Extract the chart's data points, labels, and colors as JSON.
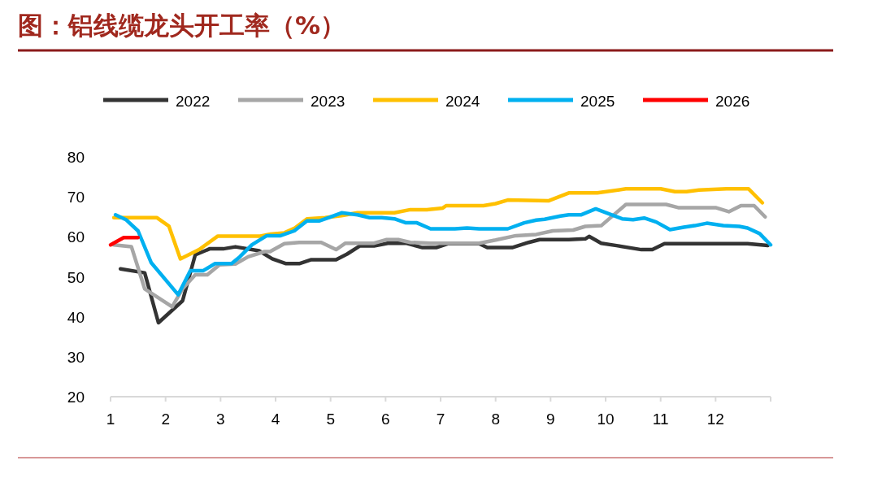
{
  "chart_data": {
    "type": "line",
    "title": "图：铝线缆龙头开工率（%）",
    "xlim": [
      1,
      13
    ],
    "xticks": [
      1,
      2,
      3,
      4,
      5,
      6,
      7,
      8,
      9,
      10,
      11,
      12
    ],
    "ylim": [
      20,
      80
    ],
    "yticks": [
      20,
      30,
      40,
      50,
      60,
      70,
      80
    ],
    "grid": false,
    "legend": "top",
    "marker": "none",
    "line_style": "solid",
    "series": [
      {
        "name": "2022",
        "color": "#333333",
        "x": [
          1.18,
          1.62,
          1.87,
          2.31,
          2.54,
          2.8,
          3.05,
          3.27,
          3.7,
          3.94,
          4.19,
          4.43,
          4.65,
          5.1,
          5.3,
          5.53,
          5.79,
          6.04,
          6.37,
          6.67,
          6.92,
          7.14,
          7.7,
          7.85,
          8.3,
          8.6,
          8.8,
          9.33,
          9.63,
          9.7,
          9.92,
          10.2,
          10.65,
          10.85,
          11.07,
          12.58,
          12.95
        ],
        "values": [
          52,
          51,
          38.5,
          44,
          55.5,
          57,
          57,
          57.5,
          56.5,
          54.5,
          53.3,
          53.3,
          54.3,
          54.3,
          55.7,
          57.7,
          57.7,
          58.4,
          58.4,
          57.3,
          57.3,
          58.3,
          58.3,
          57.3,
          57.3,
          58.6,
          59.3,
          59.3,
          59.5,
          60.1,
          58.4,
          57.8,
          56.8,
          56.8,
          58.3,
          58.3,
          57.8
        ]
      },
      {
        "name": "2023",
        "color": "#a6a6a6",
        "x": [
          1.06,
          1.38,
          1.62,
          2.12,
          2.31,
          2.54,
          2.76,
          2.98,
          3.27,
          3.5,
          3.8,
          3.9,
          4.16,
          4.43,
          4.83,
          5.1,
          5.27,
          5.79,
          6.01,
          6.23,
          6.45,
          6.82,
          7.26,
          7.7,
          8.0,
          8.37,
          8.74,
          9.04,
          9.41,
          9.63,
          9.92,
          10.37,
          11.1,
          11.32,
          12.0,
          12.24,
          12.46,
          12.7,
          12.9
        ],
        "values": [
          58,
          57.5,
          47,
          42.5,
          47,
          50.5,
          50.5,
          53,
          53.2,
          55,
          56.3,
          56.3,
          58.3,
          58.6,
          58.6,
          56.8,
          58.4,
          58.4,
          59.3,
          59.3,
          58.6,
          58.4,
          58.4,
          58.4,
          59.2,
          60.3,
          60.6,
          61.5,
          61.7,
          62.6,
          62.8,
          68.1,
          68.1,
          67.3,
          67.3,
          66.3,
          67.8,
          67.8,
          65
        ]
      },
      {
        "name": "2024",
        "color": "#ffc000",
        "x": [
          1.06,
          1.84,
          2.06,
          2.27,
          2.61,
          2.95,
          3.72,
          3.91,
          4.16,
          4.35,
          4.57,
          4.9,
          5.2,
          5.49,
          6.16,
          6.45,
          6.75,
          7.04,
          7.1,
          7.78,
          8.0,
          8.22,
          8.96,
          9.33,
          9.85,
          10.37,
          11.0,
          11.26,
          11.47,
          11.7,
          12.2,
          12.6,
          12.85
        ],
        "values": [
          64.8,
          64.8,
          62.7,
          54.5,
          56.8,
          60.2,
          60.2,
          60.7,
          61,
          62.2,
          64.5,
          64.8,
          65.3,
          66,
          66,
          66.8,
          66.8,
          67.2,
          67.8,
          67.8,
          68.3,
          69.2,
          69,
          71,
          71,
          72,
          72,
          71.3,
          71.3,
          71.7,
          72,
          72,
          68.5
        ]
      },
      {
        "name": "2025",
        "color": "#00b0f0",
        "x": [
          1.09,
          1.28,
          1.5,
          1.74,
          2.23,
          2.45,
          2.68,
          2.9,
          3.2,
          3.35,
          3.57,
          3.84,
          4.09,
          4.34,
          4.57,
          4.8,
          4.97,
          5.2,
          5.49,
          5.71,
          5.93,
          6.16,
          6.37,
          6.57,
          6.82,
          7.26,
          7.48,
          7.7,
          7.93,
          8.22,
          8.52,
          8.74,
          8.89,
          9.18,
          9.33,
          9.55,
          9.82,
          10.3,
          10.5,
          10.7,
          10.92,
          11.17,
          11.42,
          11.62,
          11.84,
          12.14,
          12.43,
          12.58,
          12.8,
          13.0
        ],
        "values": [
          65.5,
          64.3,
          61.5,
          53.5,
          45.5,
          51.5,
          51.5,
          53.3,
          53.3,
          55,
          58,
          60.3,
          60.3,
          61.5,
          64,
          64,
          64.8,
          66,
          65.5,
          64.8,
          64.8,
          64.5,
          63.5,
          63.5,
          62,
          62,
          62.2,
          62,
          62,
          62,
          63.5,
          64.2,
          64.4,
          65.2,
          65.5,
          65.5,
          67,
          64.5,
          64.3,
          64.7,
          63.7,
          61.8,
          62.4,
          62.8,
          63.4,
          62.8,
          62.6,
          62.2,
          60.8,
          58
        ]
      },
      {
        "name": "2026",
        "color": "#ff0000",
        "x": [
          1.0,
          1.24,
          1.5
        ],
        "values": [
          58,
          59.8,
          59.8
        ]
      }
    ]
  }
}
